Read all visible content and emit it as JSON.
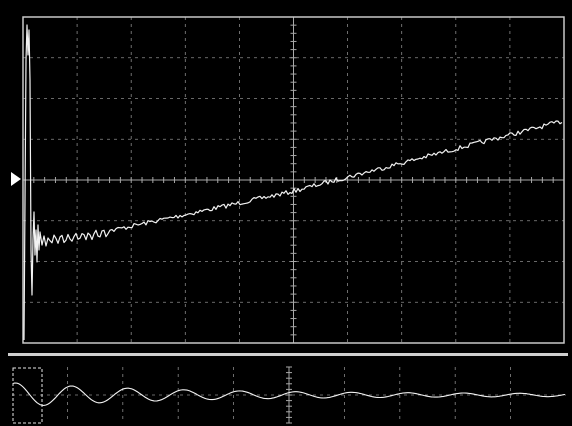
{
  "colors": {
    "background": "#000000",
    "frame": "#c8c8c8",
    "grid": "#8a8a8a",
    "trace": "#f2f2f2",
    "separator": "#cfcfcf"
  },
  "icons": {
    "ground_marker": "triangle-right-icon",
    "zoom_window": "dashed-rectangle-icon"
  },
  "display": {
    "horizontal_divisions": 10,
    "vertical_divisions": 8,
    "overview_vertical_divisions": 2,
    "grid_style": "dashed",
    "center_axes_with_ticks": true
  }
}
